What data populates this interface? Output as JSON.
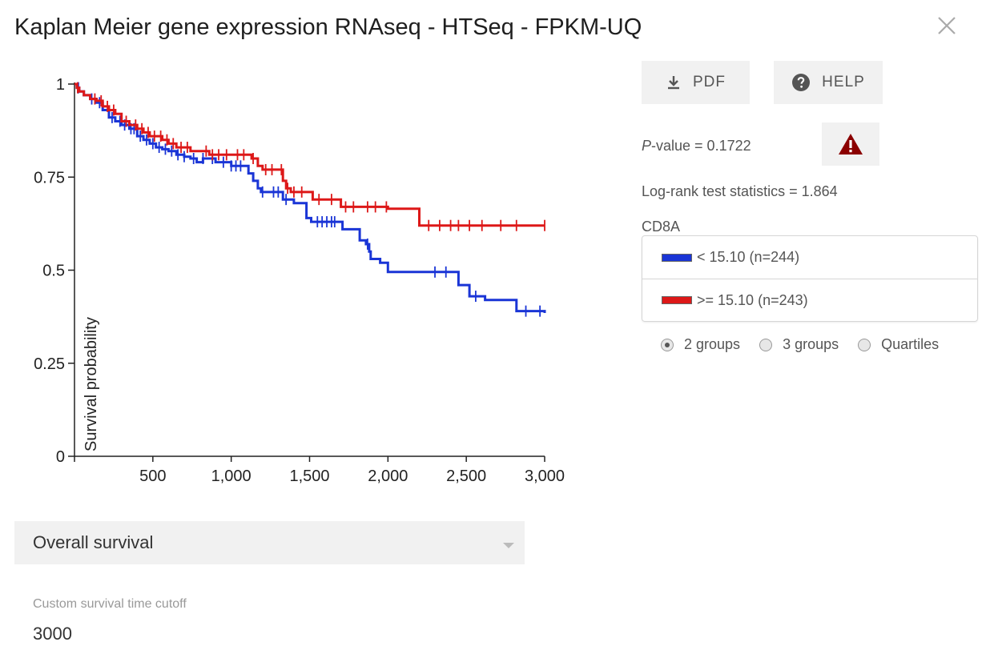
{
  "title": "Kaplan Meier gene expression RNAseq - HTSeq - FPKM-UQ",
  "icons": {
    "close": "close-icon",
    "download": "download-icon",
    "help": "help-circle-icon",
    "warning": "warning-triangle-icon"
  },
  "buttons": {
    "pdf": "PDF",
    "help": "HELP"
  },
  "stats": {
    "pvalue_prefix": "P",
    "pvalue_rest": "-value = 0.1722",
    "logrank": "Log-rank test statistics = 1.864"
  },
  "gene": "CD8A",
  "legend": [
    {
      "label": "< 15.10 (n=244)",
      "color": "#1a35d6"
    },
    {
      "label": ">= 15.10 (n=243)",
      "color": "#dd1818"
    }
  ],
  "grouping": {
    "options": [
      "2 groups",
      "3 groups",
      "Quartiles"
    ],
    "selected": 0
  },
  "survival_select": {
    "value": "Overall survival"
  },
  "cutoff": {
    "label": "Custom survival time cutoff",
    "value": "3000"
  },
  "chart_data": {
    "type": "line",
    "ylabel": "Survival probability",
    "xlabel": "",
    "xlim": [
      0,
      3000
    ],
    "ylim": [
      0,
      1
    ],
    "x_ticks": [
      500,
      1000,
      1500,
      2000,
      2500,
      3000
    ],
    "x_tick_labels": [
      "500",
      "1,000",
      "1,500",
      "2,000",
      "2,500",
      "3,000"
    ],
    "y_ticks": [
      0,
      0.25,
      0.5,
      0.75,
      1
    ],
    "y_tick_labels": [
      "0",
      "0.25",
      "0.5",
      "0.75",
      "1"
    ],
    "series": [
      {
        "color": "#1a35d6",
        "x": [
          0,
          15,
          30,
          60,
          100,
          140,
          180,
          220,
          260,
          300,
          350,
          400,
          440,
          480,
          520,
          560,
          600,
          650,
          700,
          740,
          780,
          820,
          860,
          900,
          960,
          1000,
          1040,
          1080,
          1110,
          1140,
          1170,
          1190,
          1240,
          1330,
          1400,
          1480,
          1510,
          1710,
          1820,
          1860,
          1880,
          1890,
          1950,
          2000,
          2150,
          2450,
          2520,
          2620,
          2820,
          3000
        ],
        "y": [
          1,
          0.99,
          0.98,
          0.97,
          0.96,
          0.95,
          0.93,
          0.91,
          0.9,
          0.89,
          0.88,
          0.86,
          0.85,
          0.84,
          0.83,
          0.825,
          0.82,
          0.81,
          0.805,
          0.8,
          0.79,
          0.8,
          0.8,
          0.79,
          0.79,
          0.78,
          0.78,
          0.78,
          0.76,
          0.74,
          0.72,
          0.71,
          0.71,
          0.69,
          0.68,
          0.64,
          0.63,
          0.61,
          0.58,
          0.57,
          0.55,
          0.53,
          0.52,
          0.495,
          0.495,
          0.46,
          0.43,
          0.42,
          0.39,
          0.385
        ],
        "censored_x": [
          25,
          110,
          160,
          240,
          290,
          320,
          360,
          380,
          420,
          460,
          500,
          540,
          580,
          620,
          660,
          700,
          760,
          820,
          880,
          950,
          1000,
          1030,
          1060,
          1200,
          1270,
          1300,
          1350,
          1550,
          1580,
          1610,
          1640,
          1660,
          1870,
          2300,
          2370,
          2560,
          2880,
          2970
        ]
      },
      {
        "color": "#dd1818",
        "x": [
          0,
          15,
          30,
          60,
          100,
          140,
          180,
          220,
          260,
          300,
          350,
          400,
          440,
          480,
          520,
          560,
          600,
          650,
          700,
          740,
          800,
          860,
          900,
          960,
          1000,
          1060,
          1100,
          1130,
          1170,
          1200,
          1300,
          1330,
          1350,
          1380,
          1490,
          1520,
          1600,
          1670,
          1700,
          2000,
          2130,
          2200,
          3000
        ],
        "y": [
          1,
          0.99,
          0.98,
          0.97,
          0.96,
          0.955,
          0.94,
          0.93,
          0.92,
          0.9,
          0.89,
          0.88,
          0.87,
          0.86,
          0.86,
          0.85,
          0.84,
          0.83,
          0.83,
          0.82,
          0.82,
          0.81,
          0.81,
          0.81,
          0.81,
          0.81,
          0.81,
          0.8,
          0.78,
          0.77,
          0.77,
          0.74,
          0.72,
          0.71,
          0.71,
          0.69,
          0.69,
          0.69,
          0.67,
          0.665,
          0.665,
          0.62,
          0.62
        ],
        "censored_x": [
          20,
          130,
          170,
          210,
          250,
          330,
          390,
          430,
          470,
          510,
          550,
          590,
          630,
          680,
          720,
          840,
          880,
          920,
          970,
          1040,
          1080,
          1140,
          1220,
          1260,
          1320,
          1360,
          1400,
          1450,
          1560,
          1640,
          1730,
          1780,
          1870,
          1920,
          1990,
          2260,
          2330,
          2400,
          2450,
          2520,
          2600,
          2720,
          2820,
          3000
        ]
      }
    ]
  }
}
